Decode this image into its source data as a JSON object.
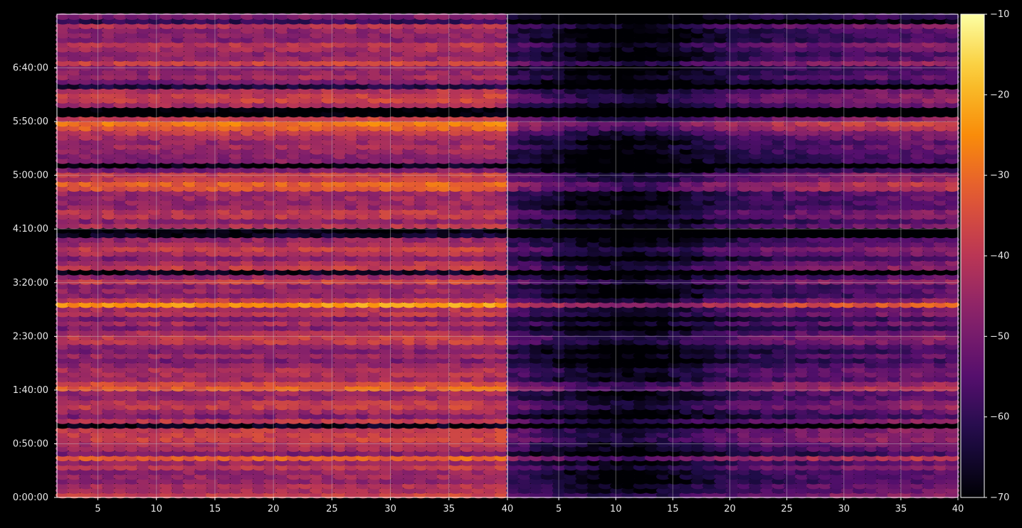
{
  "chart_data": {
    "type": "heatmap",
    "description": "Two side-by-side spectrogram-style heatmap panels sharing a time y-axis and a color scale (inferno colormap).",
    "panels": [
      {
        "name": "left",
        "xlim": [
          1.5,
          40
        ],
        "xticks": [
          5,
          10,
          15,
          20,
          25,
          30,
          35,
          40
        ],
        "intensity": "high"
      },
      {
        "name": "right",
        "xlim": [
          0.5,
          40
        ],
        "xticks": [
          5,
          10,
          15,
          20,
          25,
          30,
          35,
          40
        ],
        "intensity": "low"
      }
    ],
    "y_axis": {
      "ylim_seconds": [
        0,
        27000
      ],
      "tick_labels": [
        "0:00:00",
        "0:50:00",
        "1:40:00",
        "2:30:00",
        "3:20:00",
        "4:10:00",
        "5:00:00",
        "5:50:00",
        "6:40:00"
      ],
      "tick_seconds": [
        0,
        3000,
        6000,
        9000,
        12000,
        15000,
        18000,
        21000,
        24000
      ]
    },
    "colorbar": {
      "colormap": "inferno",
      "range": [
        -70,
        -10
      ],
      "ticks": [
        -70,
        -60,
        -50,
        -40,
        -30,
        -20,
        -10
      ]
    },
    "bright_rows_seconds": [
      2200,
      6200,
      10800,
      17400,
      20800
    ],
    "dark_rows_seconds": [
      4000,
      12600,
      14800,
      18600,
      21600
    ],
    "grid": true
  },
  "colors": {
    "background": "#000000",
    "axis": "#ffffff",
    "grid": "#bfbfbf"
  }
}
